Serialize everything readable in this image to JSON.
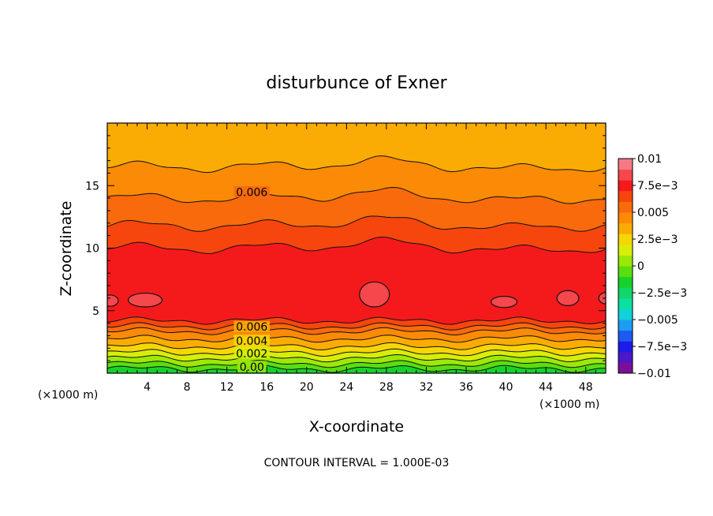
{
  "chart_data": {
    "type": "heatmap",
    "title": "disturbunce of Exner",
    "xlabel": "X-coordinate",
    "ylabel": "Z-coordinate",
    "x_unit": "(×1000 m)",
    "y_unit": "(×1000 m)",
    "xlim": [
      0,
      50
    ],
    "ylim": [
      0,
      20
    ],
    "x_ticks": [
      "4",
      "8",
      "12",
      "16",
      "20",
      "24",
      "28",
      "32",
      "36",
      "40",
      "44",
      "48"
    ],
    "y_ticks": [
      "5",
      "10",
      "15"
    ],
    "contour_labels": [
      "0.006",
      "0.006",
      "0.004",
      "0.002",
      "0.00"
    ],
    "footer": "CONTOUR INTERVAL = 1.000E-03",
    "colorbar": {
      "labels": [
        "0.01",
        "7.5e-3",
        "0.005",
        "2.5e-3",
        "0",
        "-2.5e-3",
        "-0.005",
        "-7.5e-3",
        "-0.01"
      ],
      "range": [
        -0.01,
        0.01
      ],
      "colors": [
        "#7b0f9a",
        "#4a18c8",
        "#1c1ce6",
        "#1e5af2",
        "#1c9cf2",
        "#10d2d8",
        "#0ce0a0",
        "#12d66a",
        "#18d22c",
        "#5ade10",
        "#9ce808",
        "#d8ee08",
        "#f6d606",
        "#fbac04",
        "#fb8a06",
        "#f86a0c",
        "#f6460e",
        "#f41a1c",
        "#f5474c",
        "#f47a86"
      ]
    },
    "levels_bottom_to_top": [
      {
        "level": 0.0,
        "z_top": 0.35,
        "color": "#18d22c"
      },
      {
        "level": 0.001,
        "z_top": 0.75,
        "color": "#5ade10"
      },
      {
        "level": 0.002,
        "z_top": 1.2,
        "color": "#9ce808"
      },
      {
        "level": 0.0025,
        "z_top": 1.65,
        "color": "#d8ee08"
      },
      {
        "level": 0.003,
        "z_top": 2.15,
        "color": "#f6d606"
      },
      {
        "level": 0.004,
        "z_top": 2.75,
        "color": "#fbac04"
      },
      {
        "level": 0.005,
        "z_top": 3.35,
        "color": "#fb8a06"
      },
      {
        "level": 0.0055,
        "z_top": 3.75,
        "color": "#f86a0c"
      },
      {
        "level": 0.006,
        "z_top": 4.2,
        "color": "#f6460e"
      },
      {
        "level": 0.007,
        "z_top": 10.0,
        "color": "#f41a1c"
      },
      {
        "level": 0.0065,
        "z_top": 11.8,
        "color": "#f6460e"
      },
      {
        "level": 0.006,
        "z_top": 14.0,
        "color": "#f86a0c"
      },
      {
        "level": 0.0055,
        "z_top": 16.5,
        "color": "#fb8a06"
      },
      {
        "level": 0.005,
        "z_top": 20.0,
        "color": "#fbac04"
      }
    ],
    "maxima_blobs": [
      {
        "x": 0.3,
        "z": 5.8,
        "rx": 0.8,
        "rz": 0.45
      },
      {
        "x": 3.8,
        "z": 5.85,
        "rx": 1.7,
        "rz": 0.55
      },
      {
        "x": 26.8,
        "z": 6.3,
        "rx": 1.5,
        "rz": 1.0
      },
      {
        "x": 39.8,
        "z": 5.7,
        "rx": 1.3,
        "rz": 0.45
      },
      {
        "x": 46.2,
        "z": 6.0,
        "rx": 1.1,
        "rz": 0.6
      },
      {
        "x": 50.0,
        "z": 6.0,
        "rx": 0.7,
        "rz": 0.45
      }
    ],
    "legend_position": "right colorbar"
  }
}
